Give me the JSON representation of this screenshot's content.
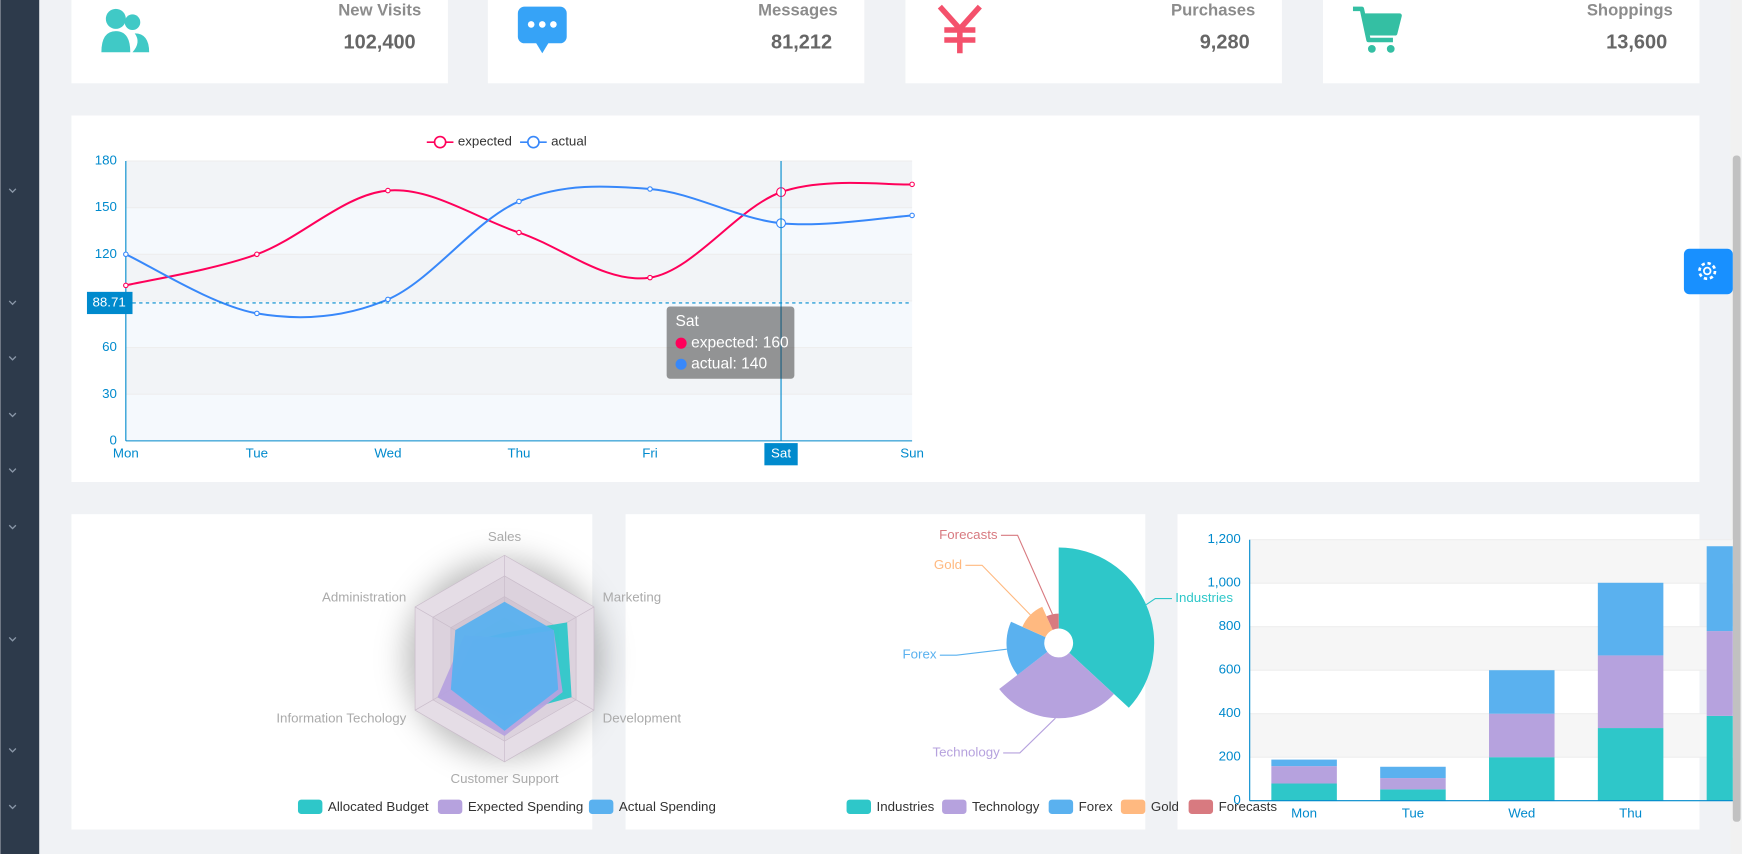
{
  "cards": [
    {
      "title": "New Visits",
      "value": "102,400"
    },
    {
      "title": "Messages",
      "value": "81,212"
    },
    {
      "title": "Purchases",
      "value": "9,280"
    },
    {
      "title": "Shoppings",
      "value": "13,600"
    }
  ],
  "chart_data": [
    {
      "type": "line",
      "categories": [
        "Mon",
        "Tue",
        "Wed",
        "Thu",
        "Fri",
        "Sat",
        "Sun"
      ],
      "series": [
        {
          "name": "expected",
          "color": "#ff005a",
          "values": [
            100,
            120,
            161,
            134,
            105,
            160,
            165
          ]
        },
        {
          "name": "actual",
          "color": "#3888fa",
          "values": [
            120,
            82,
            91,
            154,
            162,
            140,
            145
          ]
        }
      ],
      "ylim": [
        0,
        180
      ],
      "yticks": [
        0,
        30,
        60,
        90,
        120,
        150,
        180
      ],
      "grid": true,
      "axis_pointer": 88.71,
      "tooltip": [
        "expected: 160",
        "actual: 140"
      ]
    },
    {
      "type": "radar",
      "indicators": [
        "Sales",
        "Administration",
        "Information Techology",
        "Customer Support",
        "Development",
        "Marketing"
      ],
      "rlim": [
        0,
        20000
      ],
      "series": [
        {
          "name": "Allocated Budget",
          "color": "#2ec7c9",
          "values": [
            5000,
            7000,
            12000,
            11000,
            15000,
            14000
          ]
        },
        {
          "name": "Expected Spending",
          "color": "#b6a2de",
          "values": [
            4000,
            9000,
            15000,
            15000,
            13000,
            11000
          ]
        },
        {
          "name": "Actual Spending",
          "color": "#5ab1ef",
          "values": [
            11000,
            11000,
            12000,
            14000,
            12000,
            11000
          ]
        }
      ]
    },
    {
      "type": "pie",
      "rose": true,
      "categories": [
        "Industries",
        "Technology",
        "Forex",
        "Gold",
        "Forecasts"
      ],
      "values": [
        320,
        240,
        149,
        100,
        59
      ],
      "colors": [
        "#2ec7c9",
        "#b6a2de",
        "#5ab1ef",
        "#ffb980",
        "#d87a80"
      ]
    },
    {
      "type": "bar",
      "stacked": true,
      "categories": [
        "Mon",
        "Tue",
        "Wed",
        "Thu",
        null
      ],
      "series": [
        {
          "color": "#2ec7c9",
          "values": [
            79,
            52,
            200,
            334,
            390
          ]
        },
        {
          "color": "#b6a2de",
          "values": [
            80,
            52,
            200,
            334,
            390
          ]
        },
        {
          "color": "#5ab1ef",
          "values": [
            30,
            52,
            200,
            334,
            390
          ]
        }
      ],
      "ylim": [
        0,
        1200
      ],
      "yticks": [
        0,
        200,
        400,
        600,
        800,
        {
          "value": 1000,
          "label": "1,000"
        },
        {
          "value": 1200,
          "label": "1,200"
        }
      ],
      "grid": true
    }
  ]
}
